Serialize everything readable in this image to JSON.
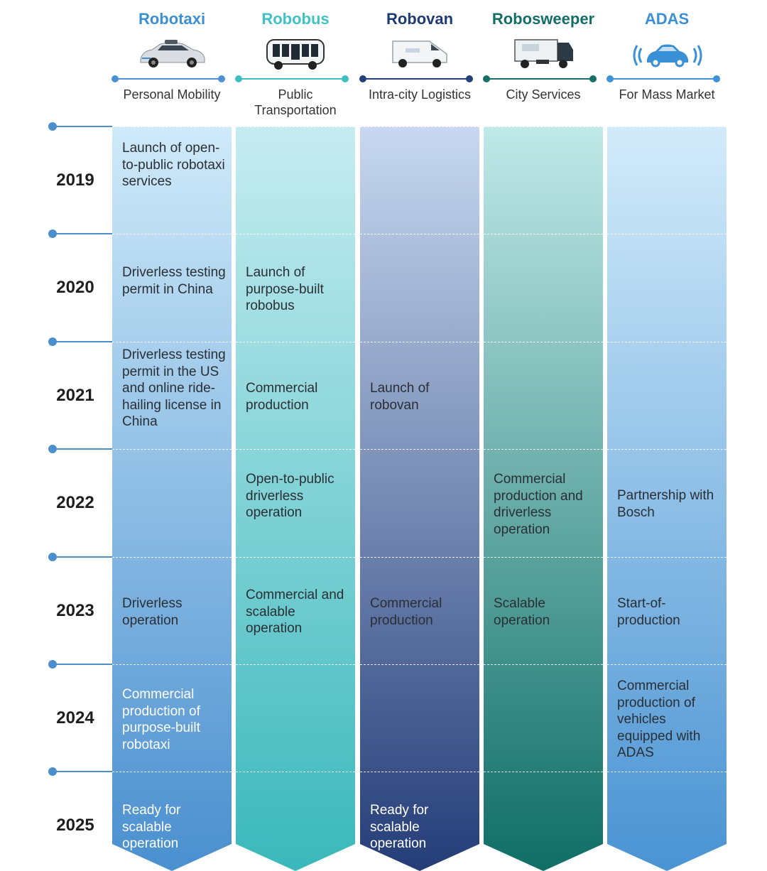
{
  "columns": [
    {
      "title": "Robotaxi",
      "subtitle": "Personal Mobility",
      "title_color": "#3c8fd0",
      "line_color": "#4a90d2",
      "icon": "robotaxi-car-icon",
      "gradient": [
        "#cfeaf9",
        "#4a8fcf"
      ]
    },
    {
      "title": "Robobus",
      "subtitle": "Public Transportation",
      "title_color": "#3fc2c4",
      "line_color": "#3ec0c2",
      "icon": "robobus-icon",
      "gradient": [
        "#c6ecf0",
        "#3ab8bb"
      ]
    },
    {
      "title": "Robovan",
      "subtitle": "Intra-city Logistics",
      "title_color": "#203a74",
      "line_color": "#24407a",
      "icon": "robovan-icon",
      "gradient": [
        "#c8d8f0",
        "#243d78"
      ]
    },
    {
      "title": "Robosweeper",
      "subtitle": "City Services",
      "title_color": "#136e68",
      "line_color": "#167068",
      "icon": "robosweeper-icon",
      "gradient": [
        "#c0e9e8",
        "#0f6e66"
      ]
    },
    {
      "title": "ADAS",
      "subtitle": "For Mass Market",
      "title_color": "#3a90d6",
      "line_color": "#3f92d8",
      "icon": "adas-connected-car-icon",
      "gradient": [
        "#d2ebfa",
        "#4a93d3"
      ]
    }
  ],
  "years": [
    "2019",
    "2020",
    "2021",
    "2022",
    "2023",
    "2024",
    "2025"
  ],
  "cells": [
    {
      "col": 0,
      "row": 0,
      "text": "Launch of open-to-public robotaxi services"
    },
    {
      "col": 0,
      "row": 1,
      "text": "Driverless testing permit in China"
    },
    {
      "col": 1,
      "row": 1,
      "text": "Launch of purpose-built robobus"
    },
    {
      "col": 0,
      "row": 2,
      "text": "Driverless testing permit in the US and online ride-hailing license in China"
    },
    {
      "col": 1,
      "row": 2,
      "text": "Commercial production"
    },
    {
      "col": 2,
      "row": 2,
      "text": "Launch of robovan"
    },
    {
      "col": 1,
      "row": 3,
      "text": "Open-to-public driverless operation"
    },
    {
      "col": 3,
      "row": 3,
      "text": "Commercial production and driverless operation"
    },
    {
      "col": 4,
      "row": 3,
      "text": "Partnership with Bosch"
    },
    {
      "col": 0,
      "row": 4,
      "text": "Driverless operation"
    },
    {
      "col": 1,
      "row": 4,
      "text": "Commercial and scalable operation"
    },
    {
      "col": 2,
      "row": 4,
      "text": "Commercial production"
    },
    {
      "col": 3,
      "row": 4,
      "text": "Scalable operation"
    },
    {
      "col": 4,
      "row": 4,
      "text": "Start-of-production"
    },
    {
      "col": 0,
      "row": 5,
      "text": "Commercial production of purpose-built robotaxi"
    },
    {
      "col": 4,
      "row": 5,
      "text": "Commercial production of vehicles equipped with ADAS"
    },
    {
      "col": 0,
      "row": 6,
      "text": "Ready for scalable operation"
    },
    {
      "col": 2,
      "row": 6,
      "text": "Ready for scalable operation"
    }
  ]
}
